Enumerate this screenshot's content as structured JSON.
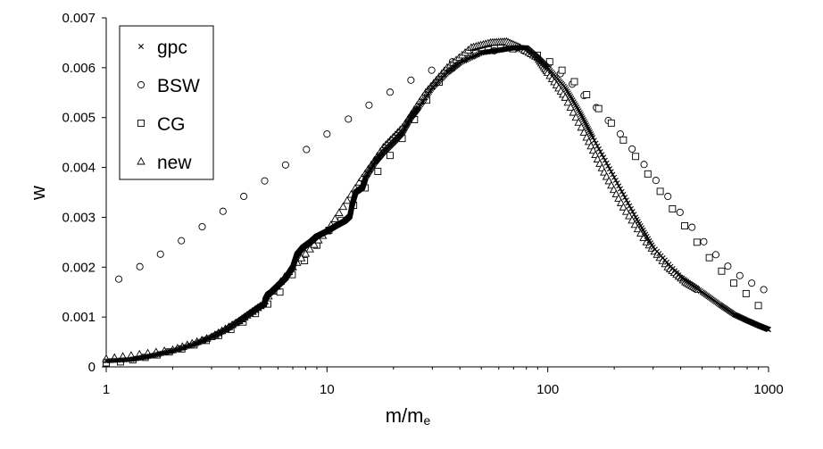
{
  "chart_data": {
    "type": "scatter",
    "title": "",
    "xlabel_main": "m/m",
    "xlabel_sub": "e",
    "ylabel": "w",
    "xscale": "log",
    "xlim": [
      1,
      1000
    ],
    "ylim": [
      0,
      0.007
    ],
    "x_ticks": [
      1,
      10,
      100,
      1000
    ],
    "x_tick_labels": [
      "1",
      "10",
      "100",
      "1000"
    ],
    "y_ticks": [
      0,
      0.001,
      0.002,
      0.003,
      0.004,
      0.005,
      0.006,
      0.007
    ],
    "y_tick_labels": [
      "0",
      "0.001",
      "0.002",
      "0.003",
      "0.004",
      "0.005",
      "0.006",
      "0.007"
    ],
    "grid": false,
    "legend_position": "top-left",
    "series": [
      {
        "name": "gpc",
        "marker": "x",
        "dense": true,
        "points": [
          [
            1.0,
            0.00012
          ],
          [
            1.3,
            0.00015
          ],
          [
            1.6,
            0.00022
          ],
          [
            2.0,
            0.00032
          ],
          [
            2.5,
            0.00045
          ],
          [
            3.0,
            0.0006
          ],
          [
            3.5,
            0.00075
          ],
          [
            4.0,
            0.00092
          ],
          [
            4.5,
            0.00108
          ],
          [
            5.0,
            0.00122
          ],
          [
            5.2,
            0.00125
          ],
          [
            5.25,
            0.00135
          ],
          [
            5.4,
            0.00145
          ],
          [
            5.6,
            0.0015
          ],
          [
            6.0,
            0.00163
          ],
          [
            6.5,
            0.00178
          ],
          [
            7.0,
            0.002
          ],
          [
            7.3,
            0.00225
          ],
          [
            7.8,
            0.0024
          ],
          [
            8.5,
            0.00252
          ],
          [
            9.0,
            0.00262
          ],
          [
            10.0,
            0.00272
          ],
          [
            11.0,
            0.00283
          ],
          [
            12.0,
            0.00292
          ],
          [
            12.7,
            0.00302
          ],
          [
            13.0,
            0.00325
          ],
          [
            13.5,
            0.0035
          ],
          [
            14.5,
            0.0036
          ],
          [
            15.0,
            0.0038
          ],
          [
            16.5,
            0.0041
          ],
          [
            18.0,
            0.0043
          ],
          [
            20.0,
            0.0045
          ],
          [
            22.0,
            0.0047
          ],
          [
            24.0,
            0.005
          ],
          [
            26.0,
            0.0052
          ],
          [
            30.0,
            0.0056
          ],
          [
            35.0,
            0.0059
          ],
          [
            40.0,
            0.0061
          ],
          [
            50.0,
            0.0063
          ],
          [
            60.0,
            0.00635
          ],
          [
            70.0,
            0.0064
          ],
          [
            80.0,
            0.0064
          ],
          [
            90.0,
            0.0062
          ],
          [
            100.0,
            0.006
          ],
          [
            120.0,
            0.0056
          ],
          [
            140.0,
            0.0051
          ],
          [
            160.0,
            0.0046
          ],
          [
            200.0,
            0.0038
          ],
          [
            250.0,
            0.003
          ],
          [
            300.0,
            0.0024
          ],
          [
            400.0,
            0.0018
          ],
          [
            500.0,
            0.0015
          ],
          [
            600.0,
            0.00125
          ],
          [
            700.0,
            0.00105
          ],
          [
            800.0,
            0.00093
          ],
          [
            900.0,
            0.00083
          ],
          [
            1000.0,
            0.00075
          ]
        ]
      },
      {
        "name": "BSW",
        "marker": "circle",
        "points": [
          [
            1.14,
            0.00176
          ],
          [
            1.42,
            0.00201
          ],
          [
            1.76,
            0.00226
          ],
          [
            2.19,
            0.00253
          ],
          [
            2.72,
            0.00281
          ],
          [
            3.38,
            0.00312
          ],
          [
            4.2,
            0.00342
          ],
          [
            5.22,
            0.00373
          ],
          [
            6.49,
            0.00405
          ],
          [
            8.07,
            0.00436
          ],
          [
            10.0,
            0.00467
          ],
          [
            12.5,
            0.00497
          ],
          [
            15.5,
            0.00525
          ],
          [
            19.3,
            0.00551
          ],
          [
            24.0,
            0.00575
          ],
          [
            29.8,
            0.00595
          ],
          [
            37.0,
            0.00612
          ],
          [
            46.0,
            0.00625
          ],
          [
            57.2,
            0.00634
          ],
          [
            71.1,
            0.00638
          ],
          [
            88.4,
            0.00624
          ],
          [
            101.0,
            0.00608
          ],
          [
            114.0,
            0.00588
          ],
          [
            129.0,
            0.00567
          ],
          [
            146.0,
            0.00544
          ],
          [
            166.0,
            0.0052
          ],
          [
            188.0,
            0.00494
          ],
          [
            213.0,
            0.00467
          ],
          [
            241.0,
            0.00437
          ],
          [
            273.0,
            0.00406
          ],
          [
            309.0,
            0.00374
          ],
          [
            350.0,
            0.00342
          ],
          [
            397.0,
            0.0031
          ],
          [
            450.0,
            0.0028
          ],
          [
            509.0,
            0.00251
          ],
          [
            577.0,
            0.00225
          ],
          [
            654.0,
            0.00202
          ],
          [
            741.0,
            0.00183
          ],
          [
            839.0,
            0.00168
          ],
          [
            951.0,
            0.00155
          ]
        ]
      },
      {
        "name": "CG",
        "marker": "square",
        "points": [
          [
            1.0,
            8e-05
          ],
          [
            1.16,
            0.0001
          ],
          [
            1.32,
            0.00014
          ],
          [
            1.5,
            0.00019
          ],
          [
            1.7,
            0.00024
          ],
          [
            1.93,
            0.0003
          ],
          [
            2.2,
            0.00036
          ],
          [
            2.5,
            0.00044
          ],
          [
            2.84,
            0.00053
          ],
          [
            3.23,
            0.00063
          ],
          [
            3.67,
            0.00075
          ],
          [
            4.17,
            0.0009
          ],
          [
            4.74,
            0.00107
          ],
          [
            5.39,
            0.00126
          ],
          [
            6.12,
            0.0015
          ],
          [
            6.96,
            0.00185
          ],
          [
            7.91,
            0.00213
          ],
          [
            8.99,
            0.00244
          ],
          [
            10.2,
            0.00274
          ],
          [
            11.6,
            0.00294
          ],
          [
            13.2,
            0.00324
          ],
          [
            14.9,
            0.00359
          ],
          [
            17.0,
            0.00392
          ],
          [
            19.3,
            0.00424
          ],
          [
            21.9,
            0.00458
          ],
          [
            24.9,
            0.00496
          ],
          [
            28.3,
            0.00535
          ],
          [
            32.2,
            0.00571
          ],
          [
            36.6,
            0.006
          ],
          [
            41.6,
            0.00618
          ],
          [
            47.3,
            0.00629
          ],
          [
            53.7,
            0.00636
          ],
          [
            61.1,
            0.00639
          ],
          [
            69.4,
            0.00638
          ],
          [
            78.9,
            0.00635
          ],
          [
            89.7,
            0.00625
          ],
          [
            102.0,
            0.00612
          ],
          [
            116.0,
            0.00595
          ],
          [
            132.0,
            0.00572
          ],
          [
            150.0,
            0.00546
          ],
          [
            170.0,
            0.00518
          ],
          [
            194.0,
            0.00489
          ],
          [
            220.0,
            0.00455
          ],
          [
            250.0,
            0.00422
          ],
          [
            284.0,
            0.00387
          ],
          [
            323.0,
            0.00352
          ],
          [
            367.0,
            0.00317
          ],
          [
            417.0,
            0.00283
          ],
          [
            474.0,
            0.0025
          ],
          [
            539.0,
            0.00219
          ],
          [
            613.0,
            0.00192
          ],
          [
            696.0,
            0.00168
          ],
          [
            791.0,
            0.00147
          ],
          [
            899.0,
            0.00123
          ]
        ]
      },
      {
        "name": "new",
        "marker": "triangle",
        "dense": true,
        "points": [
          [
            1.0,
            0.00016
          ],
          [
            2.0,
            0.00034
          ],
          [
            3.0,
            0.0006
          ],
          [
            4.0,
            0.00092
          ],
          [
            5.0,
            0.00122
          ],
          [
            7.0,
            0.002
          ],
          [
            10.0,
            0.00272
          ],
          [
            14.0,
            0.0037
          ],
          [
            18.0,
            0.0044
          ],
          [
            22.0,
            0.0048
          ],
          [
            28.0,
            0.0055
          ],
          [
            35.0,
            0.006
          ],
          [
            45.0,
            0.0064
          ],
          [
            55.0,
            0.0065
          ],
          [
            65.0,
            0.00652
          ],
          [
            75.0,
            0.0064
          ],
          [
            90.0,
            0.0062
          ],
          [
            100.0,
            0.0059
          ],
          [
            120.0,
            0.0054
          ],
          [
            150.0,
            0.0046
          ],
          [
            180.0,
            0.0039
          ],
          [
            220.0,
            0.0032
          ],
          [
            280.0,
            0.0025
          ],
          [
            350.0,
            0.002
          ],
          [
            420.0,
            0.0017
          ],
          [
            480.0,
            0.00155
          ]
        ]
      }
    ]
  }
}
